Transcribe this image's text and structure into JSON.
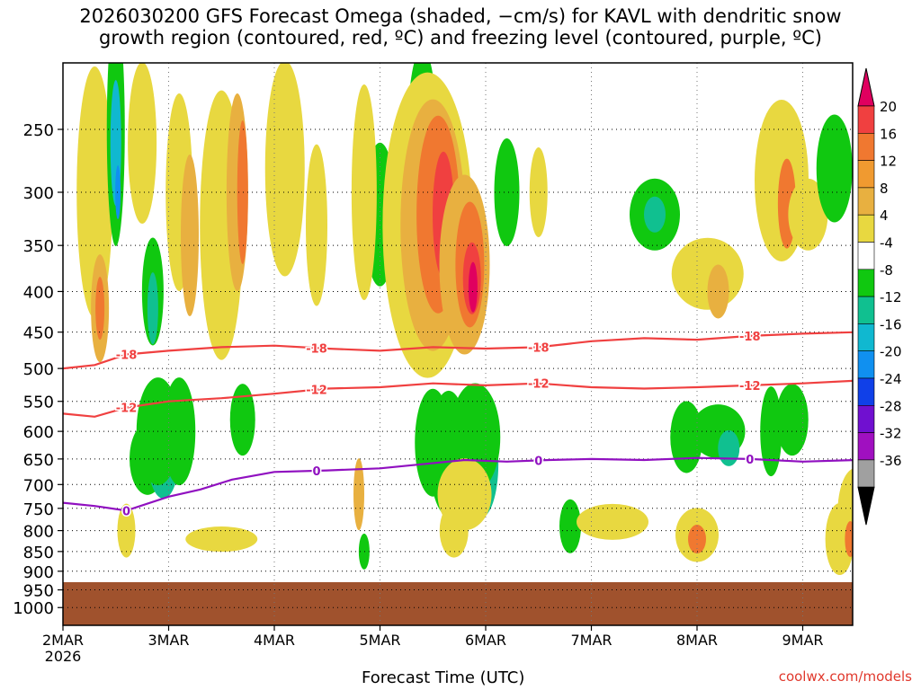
{
  "chart_data": {
    "type": "heatmap",
    "title_lines": [
      "2026030200 GFS Forecast Omega (shaded, −cm/s) for KAVL with dendritic snow",
      "growth region (contoured, red, ºC) and freezing level (contoured, purple, ºC)"
    ],
    "xlabel": "Forecast Time (UTC)",
    "x_ticks": [
      "2MAR",
      "3MAR",
      "4MAR",
      "5MAR",
      "6MAR",
      "7MAR",
      "8MAR",
      "9MAR"
    ],
    "x_year": "2026",
    "y_ticks": [
      250,
      300,
      350,
      400,
      450,
      500,
      550,
      600,
      650,
      700,
      750,
      800,
      850,
      900,
      950,
      1000
    ],
    "ylim": [
      190,
      1050
    ],
    "y_log": true,
    "colorbar_labels": [
      20,
      16,
      12,
      8,
      4,
      -4,
      -8,
      -12,
      -16,
      -20,
      -24,
      -28,
      -32,
      -36
    ],
    "colorbar_colors": [
      "#e0005f",
      "#f04040",
      "#f07830",
      "#f09a30",
      "#e8b040",
      "#e8d840",
      "#ffffff",
      "#10c810",
      "#10c090",
      "#10b8d0",
      "#1090f0",
      "#1040e8",
      "#7010d0",
      "#a010c0",
      "#a0a0a0",
      "#000000"
    ],
    "contours": [
      {
        "label": "-18",
        "color": "#f04040",
        "points": [
          [
            0,
            500
          ],
          [
            0.3,
            495
          ],
          [
            0.6,
            480
          ],
          [
            1.0,
            475
          ],
          [
            1.5,
            470
          ],
          [
            2.0,
            468
          ],
          [
            2.5,
            472
          ],
          [
            3.0,
            475
          ],
          [
            3.5,
            470
          ],
          [
            4.0,
            472
          ],
          [
            4.5,
            470
          ],
          [
            5.0,
            462
          ],
          [
            5.5,
            458
          ],
          [
            6.0,
            460
          ],
          [
            6.5,
            455
          ],
          [
            7.0,
            452
          ],
          [
            7.5,
            450
          ]
        ]
      },
      {
        "label": "-12",
        "color": "#f04040",
        "points": [
          [
            0,
            570
          ],
          [
            0.3,
            575
          ],
          [
            0.6,
            560
          ],
          [
            1.0,
            550
          ],
          [
            1.5,
            545
          ],
          [
            2.0,
            538
          ],
          [
            2.5,
            530
          ],
          [
            3.0,
            528
          ],
          [
            3.5,
            522
          ],
          [
            4.0,
            525
          ],
          [
            4.5,
            522
          ],
          [
            5.0,
            528
          ],
          [
            5.5,
            530
          ],
          [
            6.0,
            528
          ],
          [
            6.5,
            525
          ],
          [
            7.0,
            522
          ],
          [
            7.5,
            518
          ]
        ]
      },
      {
        "label": "0",
        "color": "#9010c0",
        "points": [
          [
            0,
            738
          ],
          [
            0.3,
            745
          ],
          [
            0.6,
            755
          ],
          [
            1.0,
            725
          ],
          [
            1.3,
            710
          ],
          [
            1.6,
            690
          ],
          [
            2.0,
            675
          ],
          [
            2.5,
            672
          ],
          [
            3.0,
            668
          ],
          [
            3.4,
            660
          ],
          [
            3.8,
            652
          ],
          [
            4.2,
            655
          ],
          [
            4.6,
            652
          ],
          [
            5.0,
            650
          ],
          [
            5.5,
            652
          ],
          [
            6.0,
            648
          ],
          [
            6.5,
            650
          ],
          [
            7.0,
            655
          ],
          [
            7.5,
            652
          ]
        ]
      }
    ],
    "freezing_level_label": "0",
    "credit": "coolwx.com/models"
  }
}
